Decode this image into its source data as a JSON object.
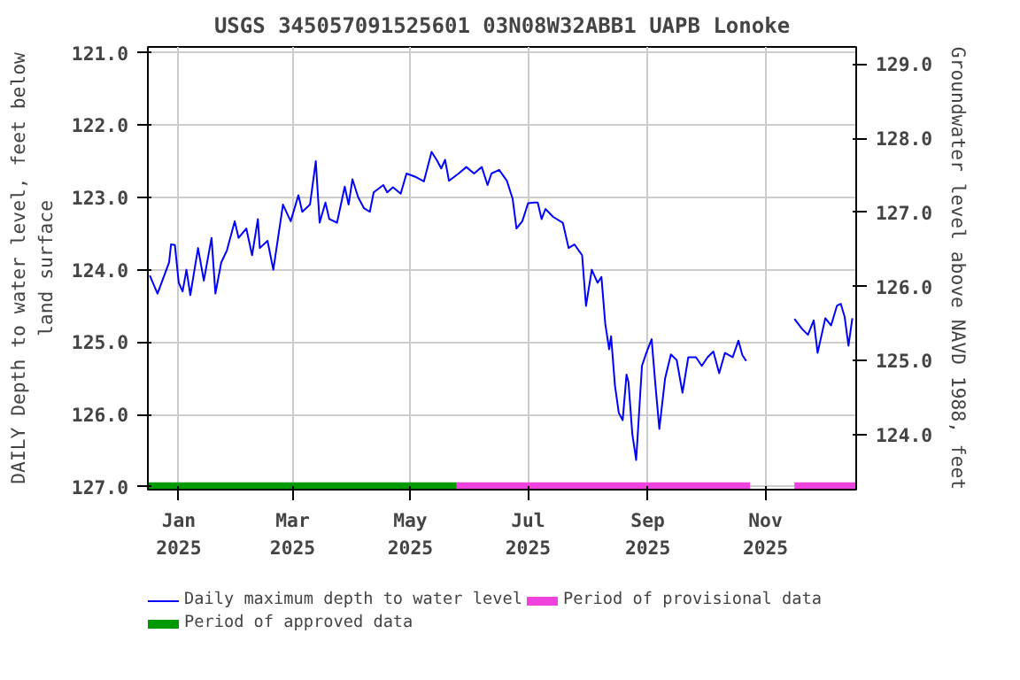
{
  "chart_data": {
    "type": "line",
    "title": "USGS 345057091525601 03N08W32ABB1 UAPB Lonoke",
    "ylabel": "DAILY Depth to water level, feet below\nland surface",
    "y2label": "Groundwater level above NAVD 1988, feet",
    "xlim": [
      "2024-12-16",
      "2025-12-18"
    ],
    "xticks": [
      {
        "value": "2025-01-01",
        "label": "Jan\n2025"
      },
      {
        "value": "2025-03-01",
        "label": "Mar\n2025"
      },
      {
        "value": "2025-05-01",
        "label": "May\n2025"
      },
      {
        "value": "2025-07-01",
        "label": "Jul\n2025"
      },
      {
        "value": "2025-09-01",
        "label": "Sep\n2025"
      },
      {
        "value": "2025-11-01",
        "label": "Nov\n2025"
      }
    ],
    "ylim": [
      127.04,
      120.92
    ],
    "yticks": [
      {
        "value": 121,
        "label": "121.0"
      },
      {
        "value": 122,
        "label": "122.0"
      },
      {
        "value": 123,
        "label": "123.0"
      },
      {
        "value": 124,
        "label": "124.0"
      },
      {
        "value": 125,
        "label": "125.0"
      },
      {
        "value": 126,
        "label": "126.0"
      },
      {
        "value": 127,
        "label": "127.0"
      }
    ],
    "y2lim": [
      123.26,
      129.23
    ],
    "y2ticks": [
      {
        "value": 124,
        "label": "124.0"
      },
      {
        "value": 125,
        "label": "125.0"
      },
      {
        "value": 126,
        "label": "126.0"
      },
      {
        "value": 127,
        "label": "127.0"
      },
      {
        "value": 128,
        "label": "128.0"
      },
      {
        "value": 129,
        "label": "129.0"
      }
    ],
    "grid": true,
    "legend": "bottom",
    "series": [
      {
        "name": "Daily maximum depth to water level",
        "color": "#0000ff",
        "x": [
          "2024-12-17",
          "2024-12-21",
          "2024-12-27",
          "2024-12-28",
          "2024-12-30",
          "2025-01-01",
          "2025-01-03",
          "2025-01-05",
          "2025-01-07",
          "2025-01-11",
          "2025-01-14",
          "2025-01-18",
          "2025-01-20",
          "2025-01-23",
          "2025-01-26",
          "2025-01-30",
          "2025-02-01",
          "2025-02-05",
          "2025-02-08",
          "2025-02-11",
          "2025-02-12",
          "2025-02-16",
          "2025-02-19",
          "2025-02-24",
          "2025-02-28",
          "2025-03-04",
          "2025-03-06",
          "2025-03-10",
          "2025-03-13",
          "2025-03-15",
          "2025-03-18",
          "2025-03-20",
          "2025-03-24",
          "2025-03-28",
          "2025-03-30",
          "2025-04-01",
          "2025-04-04",
          "2025-04-07",
          "2025-04-10",
          "2025-04-12",
          "2025-04-17",
          "2025-04-19",
          "2025-04-22",
          "2025-04-26",
          "2025-04-29",
          "2025-05-04",
          "2025-05-08",
          "2025-05-12",
          "2025-05-15",
          "2025-05-17",
          "2025-05-19",
          "2025-05-21",
          "2025-05-26",
          "2025-05-30",
          "2025-06-03",
          "2025-06-07",
          "2025-06-10",
          "2025-06-12",
          "2025-06-16",
          "2025-06-20",
          "2025-06-23",
          "2025-06-25",
          "2025-06-28",
          "2025-07-01",
          "2025-07-04",
          "2025-07-06",
          "2025-07-08",
          "2025-07-10",
          "2025-07-14",
          "2025-07-19",
          "2025-07-22",
          "2025-07-25",
          "2025-07-29",
          "2025-07-31",
          "2025-08-03",
          "2025-08-06",
          "2025-08-08",
          "2025-08-10",
          "2025-08-12",
          "2025-08-13",
          "2025-08-15",
          "2025-08-17",
          "2025-08-19",
          "2025-08-21",
          "2025-08-22",
          "2025-08-24",
          "2025-08-26",
          "2025-08-29",
          "2025-08-31",
          "2025-09-03",
          "2025-09-05",
          "2025-09-07",
          "2025-09-10",
          "2025-09-13",
          "2025-09-16",
          "2025-09-19",
          "2025-09-22",
          "2025-09-26",
          "2025-09-29",
          "2025-10-02",
          "2025-10-05",
          "2025-10-08",
          "2025-10-11",
          "2025-10-15",
          "2025-10-18",
          "2025-10-20",
          "2025-10-22",
          "2025-11-05",
          "2025-11-16",
          "2025-11-20",
          "2025-11-23",
          "2025-11-26",
          "2025-11-28",
          "2025-12-02",
          "2025-12-05",
          "2025-12-08",
          "2025-12-10",
          "2025-12-12",
          "2025-12-14",
          "2025-12-16"
        ],
        "values": [
          124.08,
          124.33,
          123.9,
          123.65,
          123.66,
          124.18,
          124.3,
          124.0,
          124.35,
          123.7,
          124.15,
          123.56,
          124.33,
          123.9,
          123.73,
          123.33,
          123.56,
          123.43,
          123.8,
          123.3,
          123.7,
          123.6,
          124.0,
          123.1,
          123.33,
          122.97,
          123.2,
          123.1,
          122.5,
          123.35,
          123.07,
          123.3,
          123.35,
          122.85,
          123.1,
          122.75,
          123.0,
          123.15,
          123.2,
          122.93,
          122.83,
          122.93,
          122.86,
          122.95,
          122.67,
          122.72,
          122.78,
          122.37,
          122.5,
          122.6,
          122.48,
          122.77,
          122.67,
          122.58,
          122.67,
          122.58,
          122.83,
          122.67,
          122.62,
          122.77,
          123.02,
          123.43,
          123.33,
          123.08,
          123.07,
          123.07,
          123.3,
          123.16,
          123.27,
          123.35,
          123.7,
          123.65,
          123.8,
          124.5,
          124.0,
          124.18,
          124.1,
          124.75,
          125.1,
          124.92,
          125.6,
          125.98,
          126.08,
          125.45,
          125.55,
          126.27,
          126.63,
          125.33,
          125.17,
          124.96,
          125.6,
          126.2,
          125.5,
          125.17,
          125.25,
          125.7,
          125.21,
          125.21,
          125.33,
          125.21,
          125.13,
          125.43,
          125.15,
          125.21,
          124.98,
          125.18,
          125.26,
          null,
          124.68,
          124.82,
          124.9,
          124.7,
          125.15,
          124.67,
          124.77,
          124.5,
          124.47,
          124.65,
          125.05,
          124.67
        ]
      },
      {
        "name": "Period of provisional data",
        "color": "#ee44dd",
        "x": [
          "2025-05-25",
          "2025-10-24",
          "2025-11-05",
          "2025-11-16",
          "2025-12-18"
        ],
        "values": [
          127,
          127,
          null,
          127,
          127
        ]
      },
      {
        "name": "Period of approved data",
        "color": "#009900",
        "x": [
          "2024-12-16",
          "2025-05-25"
        ],
        "values": [
          127,
          127
        ]
      }
    ]
  }
}
